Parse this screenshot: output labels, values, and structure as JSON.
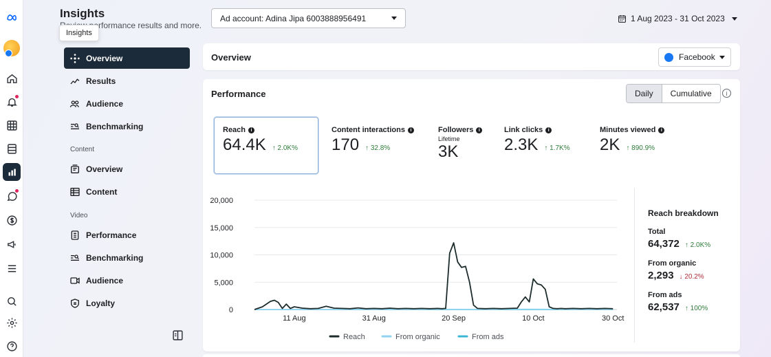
{
  "app": {
    "title": "Insights",
    "subtitle": "Review performance results and more.",
    "tooltip": "Insights"
  },
  "nav": {
    "items_top": [
      {
        "label": "Overview",
        "icon": "sparkle-icon"
      },
      {
        "label": "Results",
        "icon": "trend-icon"
      },
      {
        "label": "Audience",
        "icon": "people-icon"
      },
      {
        "label": "Benchmarking",
        "icon": "benchmark-icon"
      }
    ],
    "content_section": "Content",
    "content_items": [
      {
        "label": "Overview",
        "icon": "content-overview-icon"
      },
      {
        "label": "Content",
        "icon": "table-icon"
      }
    ],
    "video_section": "Video",
    "video_items": [
      {
        "label": "Performance",
        "icon": "document-icon"
      },
      {
        "label": "Benchmarking",
        "icon": "benchmark-icon"
      },
      {
        "label": "Audience",
        "icon": "video-icon"
      },
      {
        "label": "Loyalty",
        "icon": "shield-icon"
      }
    ]
  },
  "topbar": {
    "ad_account": "Ad account: Adina Jipa 6003888956491",
    "date_range": "1 Aug 2023 - 31 Oct 2023"
  },
  "overview": {
    "title": "Overview",
    "platform": "Facebook"
  },
  "performance": {
    "title": "Performance",
    "toggle": [
      "Daily",
      "Cumulative"
    ],
    "info": "i",
    "metrics": [
      {
        "label": "Reach",
        "value": "64.4K",
        "change": "↑ 2.0K%"
      },
      {
        "label": "Content interactions",
        "value": "170",
        "change": "↑ 32.8%"
      },
      {
        "label": "Followers",
        "sub": "Lifetime",
        "value": "3K",
        "change": ""
      },
      {
        "label": "Link clicks",
        "value": "2.3K",
        "change": "↑ 1.7K%"
      },
      {
        "label": "Minutes viewed",
        "value": "2K",
        "change": "↑ 890.9%"
      }
    ],
    "breakdown": {
      "title": "Reach breakdown",
      "items": [
        {
          "label": "Total",
          "value": "64,372",
          "change": "↑ 2.0K%",
          "dir": "up"
        },
        {
          "label": "From organic",
          "value": "2,293",
          "change": "↓ 20.2%",
          "dir": "down"
        },
        {
          "label": "From ads",
          "value": "62,537",
          "change": "↑ 100%",
          "dir": "up"
        }
      ]
    }
  },
  "chart_data": {
    "type": "line",
    "y_tick_labels": [
      "20,000",
      "15,000",
      "10,000",
      "5,000",
      "0"
    ],
    "y_ticks": [
      20000,
      15000,
      10000,
      5000,
      0
    ],
    "ylim": [
      0,
      20000
    ],
    "x_tick_labels": [
      "11 Aug",
      "31 Aug",
      "20 Sep",
      "10 Oct",
      "30 Oct"
    ],
    "x_tick_days": [
      10,
      30,
      50,
      70,
      90
    ],
    "xlim": [
      0,
      91
    ],
    "grid": true,
    "legend_position": "bottom",
    "colors": {
      "Reach": "#1c2b2b",
      "From organic": "#8fd3f0",
      "From ads": "#3ab7d6"
    },
    "series": [
      {
        "name": "Reach",
        "x": [
          0,
          2,
          4,
          5,
          6,
          7,
          8,
          9,
          10,
          12,
          14,
          16,
          18,
          20,
          22,
          24,
          26,
          28,
          30,
          32,
          34,
          36,
          38,
          40,
          42,
          44,
          46,
          47,
          48,
          49,
          50,
          51,
          52,
          53,
          54,
          55,
          56,
          58,
          60,
          62,
          64,
          66,
          67,
          68,
          69,
          70,
          71,
          72,
          73,
          74,
          75,
          76,
          77,
          78,
          80,
          82,
          84,
          86,
          88,
          90
        ],
        "y": [
          0,
          500,
          1500,
          1700,
          1300,
          200,
          1000,
          200,
          500,
          250,
          150,
          200,
          600,
          250,
          200,
          150,
          300,
          150,
          200,
          150,
          250,
          150,
          200,
          150,
          200,
          150,
          200,
          150,
          200,
          10300,
          12200,
          8700,
          7700,
          7900,
          5000,
          800,
          200,
          150,
          200,
          150,
          200,
          250,
          1400,
          2300,
          1400,
          5600,
          4700,
          4500,
          3700,
          500,
          200,
          150,
          200,
          150,
          200,
          150,
          200,
          150,
          200,
          150
        ]
      },
      {
        "name": "From organic",
        "x": [
          0,
          10,
          20,
          30,
          40,
          50,
          60,
          70,
          80,
          90
        ],
        "y": [
          0,
          30,
          20,
          40,
          30,
          50,
          40,
          60,
          30,
          40
        ]
      },
      {
        "name": "From ads",
        "x": [
          0,
          10,
          20,
          30,
          40,
          50,
          60,
          70,
          80,
          90
        ],
        "y": [
          0,
          0,
          0,
          0,
          0,
          0,
          0,
          0,
          0,
          0
        ]
      }
    ]
  }
}
